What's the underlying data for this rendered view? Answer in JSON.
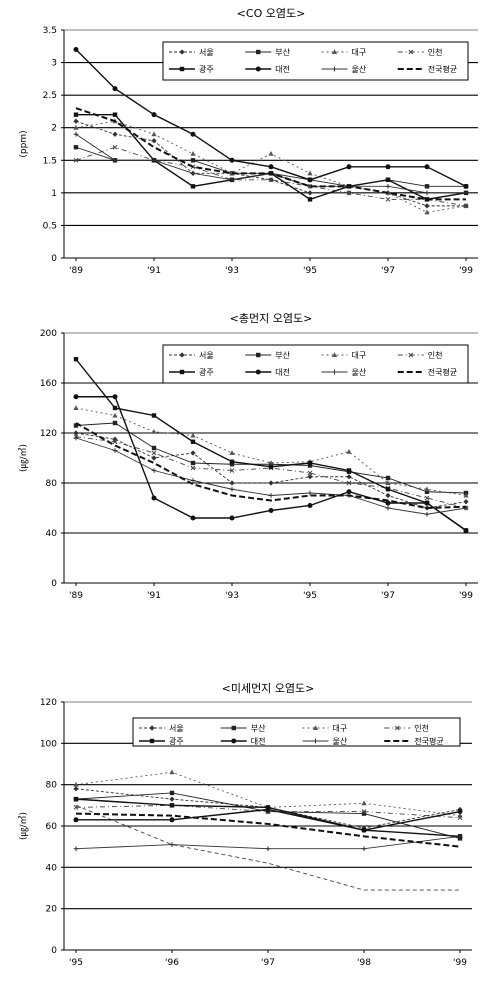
{
  "series_names": [
    "서울",
    "부산",
    "대구",
    "인천",
    "광주",
    "대전",
    "울산",
    "전국평균"
  ],
  "styles": {
    "colors": [
      "#333333",
      "#222222",
      "#555555",
      "#444444",
      "#111111",
      "#111111",
      "#333333",
      "#111111"
    ],
    "widths": [
      0.9,
      0.9,
      0.9,
      0.9,
      1.4,
      1.4,
      0.9,
      2.0
    ],
    "dashes": [
      "3,2",
      "0",
      "2,3",
      "5,3,1,3",
      "0",
      "0",
      "0",
      "6,3"
    ],
    "markers": [
      "diamond",
      "square",
      "triangle",
      "x",
      "square",
      "circle",
      "plus",
      "none"
    ]
  },
  "chart_data": [
    {
      "type": "line",
      "title": "<CO 오염도>",
      "ylabel": "(ppm)",
      "ylim": [
        0,
        3.5
      ],
      "ymajor": [
        0.5,
        1,
        1.5,
        2,
        2.5,
        3
      ],
      "yticks": [
        "0",
        "0.5",
        "1",
        "1.5",
        "2",
        "2.5",
        "3",
        "3.5"
      ],
      "x": [
        "'89",
        "'90",
        "'91",
        "'92",
        "'93",
        "'94",
        "'95",
        "'96",
        "'97",
        "'98",
        "'99"
      ],
      "xticks": [
        "'89",
        "'91",
        "'93",
        "'95",
        "'97",
        "'99"
      ],
      "series": [
        {
          "name": "서울",
          "values": [
            2.1,
            1.9,
            1.8,
            1.3,
            1.3,
            1.2,
            1.0,
            1.0,
            1.0,
            0.8,
            0.8
          ]
        },
        {
          "name": "부산",
          "values": [
            1.7,
            1.5,
            1.5,
            1.5,
            1.3,
            1.3,
            1.2,
            1.1,
            1.2,
            1.1,
            1.1
          ]
        },
        {
          "name": "대구",
          "values": [
            2.0,
            2.1,
            1.9,
            1.6,
            1.3,
            1.6,
            1.3,
            1.1,
            1.0,
            0.7,
            0.8
          ]
        },
        {
          "name": "인천",
          "values": [
            1.5,
            1.7,
            1.5,
            1.4,
            1.2,
            1.2,
            1.1,
            1.0,
            0.9,
            0.9,
            0.8
          ]
        },
        {
          "name": "광주",
          "values": [
            2.2,
            2.2,
            1.5,
            1.1,
            1.2,
            1.3,
            0.9,
            1.1,
            1.2,
            0.9,
            1.0
          ]
        },
        {
          "name": "대전",
          "values": [
            3.2,
            2.6,
            2.2,
            1.9,
            1.5,
            1.4,
            1.2,
            1.4,
            1.4,
            1.4,
            1.1
          ]
        },
        {
          "name": "울산",
          "values": [
            1.9,
            1.5,
            1.5,
            1.3,
            1.2,
            1.3,
            1.1,
            1.1,
            1.1,
            1.0,
            1.0
          ]
        },
        {
          "name": "전국평균",
          "values": [
            2.3,
            2.1,
            1.7,
            1.4,
            1.3,
            1.3,
            1.1,
            1.1,
            1.0,
            0.9,
            0.9
          ]
        }
      ]
    },
    {
      "type": "line",
      "title": "<총먼지 오염도>",
      "ylabel": "(㎍/㎥)",
      "ylim": [
        0,
        200
      ],
      "ymajor": [
        40,
        80,
        120,
        160
      ],
      "yticks": [
        "0",
        "40",
        "80",
        "120",
        "160",
        "200"
      ],
      "x": [
        "'89",
        "'90",
        "'91",
        "'92",
        "'93",
        "'94",
        "'95",
        "'96",
        "'97",
        "'98",
        "'99"
      ],
      "xticks": [
        "'89",
        "'91",
        "'93",
        "'95",
        "'97",
        "'99"
      ],
      "series": [
        {
          "name": "서울",
          "values": [
            120,
            115,
            100,
            104,
            80,
            80,
            85,
            85,
            70,
            60,
            65
          ]
        },
        {
          "name": "부산",
          "values": [
            126,
            128,
            108,
            96,
            95,
            95,
            94,
            89,
            84,
            73,
            72
          ]
        },
        {
          "name": "대구",
          "values": [
            140,
            134,
            121,
            118,
            104,
            96,
            97,
            105,
            80,
            75,
            70
          ]
        },
        {
          "name": "인천",
          "values": [
            117,
            113,
            104,
            92,
            90,
            92,
            88,
            80,
            76,
            68,
            60
          ]
        },
        {
          "name": "광주",
          "values": [
            179,
            140,
            134,
            113,
            97,
            93,
            96,
            90,
            75,
            64,
            42
          ]
        },
        {
          "name": "대전",
          "values": [
            149,
            149,
            68,
            52,
            52,
            58,
            62,
            73,
            64,
            64,
            42
          ]
        },
        {
          "name": "울산",
          "values": [
            116,
            106,
            90,
            82,
            75,
            70,
            72,
            70,
            60,
            55,
            60
          ]
        },
        {
          "name": "전국평균",
          "values": [
            128,
            110,
            96,
            79,
            70,
            66,
            70,
            70,
            66,
            60,
            61
          ]
        }
      ]
    },
    {
      "type": "line",
      "title": "<미세먼지 오염도>",
      "ylabel": "(㎍/㎥)",
      "ylim": [
        0,
        120
      ],
      "ymajor": [
        20,
        40,
        60,
        80,
        100
      ],
      "yticks": [
        "0",
        "20",
        "40",
        "60",
        "80",
        "100",
        "120"
      ],
      "x": [
        "'95",
        "'96",
        "'97",
        "'98",
        "'99"
      ],
      "xticks": [
        "'95",
        "'96",
        "'97",
        "'98",
        "'99"
      ],
      "series": [
        {
          "name": "서울",
          "values": [
            78,
            73,
            69,
            59,
            68
          ]
        },
        {
          "name": "부산",
          "values": [
            73,
            76,
            67,
            66,
            54
          ]
        },
        {
          "name": "대구",
          "values": [
            80,
            86,
            69,
            71,
            65
          ]
        },
        {
          "name": "인천",
          "values": [
            69,
            70,
            67,
            67,
            64
          ]
        },
        {
          "name": "광주",
          "values": [
            73,
            70,
            69,
            58,
            55
          ]
        },
        {
          "name": "대전",
          "values": [
            63,
            63,
            68,
            58,
            67
          ]
        },
        {
          "name": "울산",
          "values": [
            49,
            51,
            49,
            49,
            55
          ]
        },
        {
          "name": "전국평균",
          "values": [
            66,
            65,
            61,
            55,
            50
          ]
        }
      ],
      "extra_line": {
        "values": [
          70,
          51,
          42,
          29,
          29
        ]
      }
    }
  ]
}
